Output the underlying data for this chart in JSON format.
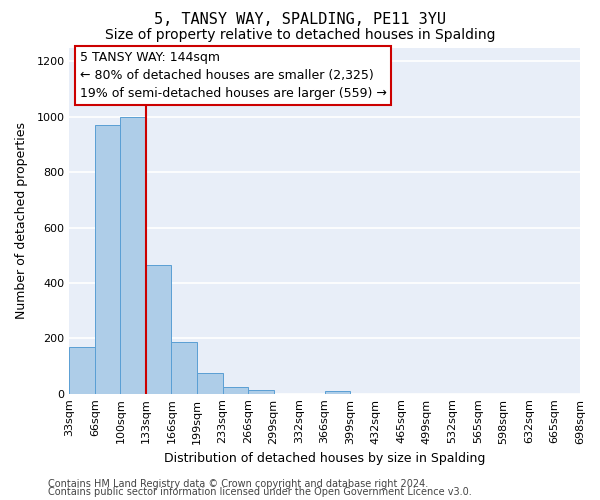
{
  "title": "5, TANSY WAY, SPALDING, PE11 3YU",
  "subtitle": "Size of property relative to detached houses in Spalding",
  "xlabel": "Distribution of detached houses by size in Spalding",
  "ylabel": "Number of detached properties",
  "bar_values": [
    170,
    970,
    1000,
    465,
    185,
    75,
    25,
    15,
    0,
    0,
    10,
    0,
    0,
    0,
    0,
    0,
    0,
    0,
    0,
    0
  ],
  "bar_labels": [
    "33sqm",
    "66sqm",
    "100sqm",
    "133sqm",
    "166sqm",
    "199sqm",
    "233sqm",
    "266sqm",
    "299sqm",
    "332sqm",
    "366sqm",
    "399sqm",
    "432sqm",
    "465sqm",
    "499sqm",
    "532sqm",
    "565sqm",
    "598sqm",
    "632sqm",
    "665sqm",
    "698sqm"
  ],
  "bar_color": "#aecde8",
  "bar_edge_color": "#5a9fd4",
  "ylim": [
    0,
    1250
  ],
  "yticks": [
    0,
    200,
    400,
    600,
    800,
    1000,
    1200
  ],
  "vline_x": 3.0,
  "vline_color": "#cc0000",
  "annotation_title": "5 TANSY WAY: 144sqm",
  "annotation_line1": "← 80% of detached houses are smaller (2,325)",
  "annotation_line2": "19% of semi-detached houses are larger (559) →",
  "annotation_box_color": "#ffffff",
  "annotation_border_color": "#cc0000",
  "footer_line1": "Contains HM Land Registry data © Crown copyright and database right 2024.",
  "footer_line2": "Contains public sector information licensed under the Open Government Licence v3.0.",
  "fig_bg_color": "#ffffff",
  "plot_bg_color": "#e8eef8",
  "grid_color": "#ffffff",
  "title_fontsize": 11,
  "subtitle_fontsize": 10,
  "axis_label_fontsize": 9,
  "tick_fontsize": 8,
  "annotation_fontsize": 9,
  "footer_fontsize": 7
}
